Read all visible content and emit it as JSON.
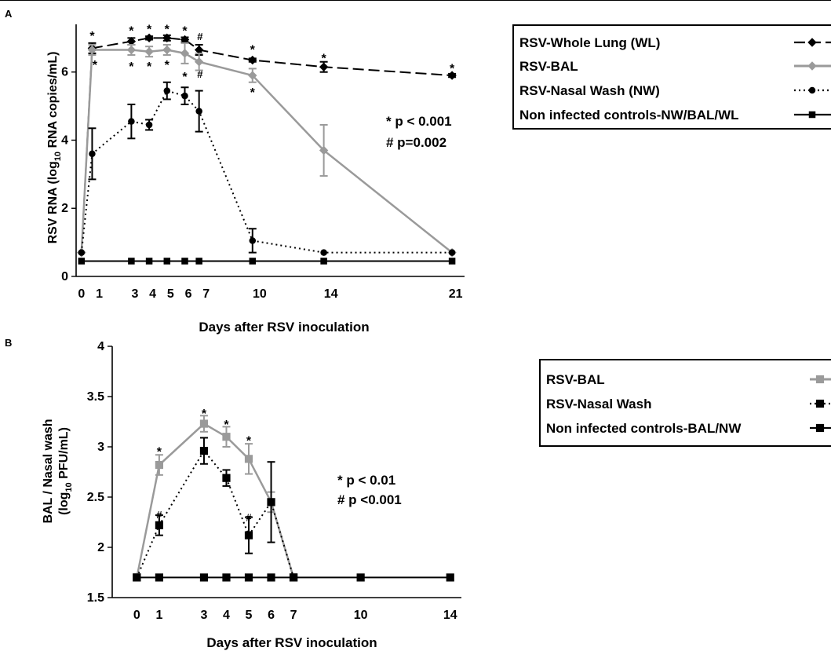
{
  "chart_data": [
    {
      "panel_label": "A",
      "type": "line",
      "xlabel": "Days after RSV inoculation",
      "ylabel_main": "RSV RNA (log",
      "ylabel_sub": "10",
      "ylabel_end": " RNA copies/mL)",
      "x_ticks": [
        "0",
        "1",
        "3",
        "4",
        "5",
        "6",
        "7",
        "10",
        "14",
        "21"
      ],
      "x_tick_values": [
        0,
        1,
        3,
        4,
        5,
        6,
        7,
        10,
        14,
        21
      ],
      "y_ticks": [
        "0",
        "2",
        "4",
        "6"
      ],
      "y_tick_values": [
        0,
        2,
        4,
        6
      ],
      "xlim": [
        -0.3,
        21.5
      ],
      "ylim": [
        0,
        7.4
      ],
      "grid": false,
      "legend_position": "top-right",
      "series": [
        {
          "name": "RSV-Whole Lung (WL)",
          "color": "#000000",
          "dash": "dash",
          "marker": "diamond",
          "x": [
            0,
            0.6,
            2.8,
            3.8,
            4.8,
            5.8,
            6.6,
            9.6,
            13.6,
            20.8
          ],
          "y": [
            0.7,
            6.7,
            6.9,
            7.0,
            7.0,
            6.95,
            6.65,
            6.35,
            6.15,
            5.9
          ],
          "err": [
            0,
            0.15,
            0.1,
            0.05,
            0.08,
            0.07,
            0.15,
            0.05,
            0.15,
            0.05
          ]
        },
        {
          "name": "RSV-BAL",
          "color": "#9a9a9a",
          "dash": "solid",
          "marker": "diamond",
          "x": [
            0,
            0.6,
            2.8,
            3.8,
            4.8,
            5.8,
            6.6,
            9.6,
            13.6,
            20.8
          ],
          "y": [
            0.7,
            6.65,
            6.65,
            6.6,
            6.65,
            6.55,
            6.3,
            5.9,
            3.7,
            0.7
          ],
          "err": [
            0,
            0.15,
            0.15,
            0.15,
            0.15,
            0.3,
            0.25,
            0.2,
            0.75,
            0
          ]
        },
        {
          "name": "RSV-Nasal Wash (NW)",
          "color": "#000000",
          "dash": "dot",
          "marker": "circle",
          "x": [
            0,
            0.6,
            2.8,
            3.8,
            4.8,
            5.8,
            6.6,
            9.6,
            13.6,
            20.8
          ],
          "y": [
            0.7,
            3.6,
            4.55,
            4.45,
            5.45,
            5.3,
            4.85,
            1.05,
            0.7,
            0.7
          ],
          "err": [
            0,
            0.75,
            0.5,
            0.15,
            0.25,
            0.25,
            0.6,
            0.35,
            0,
            0
          ]
        },
        {
          "name": "Non infected controls-NW/BAL/WL",
          "color": "#000000",
          "dash": "solid",
          "marker": "square",
          "x": [
            0,
            2.8,
            3.8,
            4.8,
            5.8,
            6.6,
            9.6,
            13.6,
            20.8
          ],
          "y": [
            0.45,
            0.45,
            0.45,
            0.45,
            0.45,
            0.45,
            0.45,
            0.45,
            0.45
          ],
          "err": [
            0,
            0,
            0,
            0,
            0,
            0,
            0,
            0,
            0
          ]
        }
      ],
      "annotations": [
        {
          "text": "*",
          "x": 0.6,
          "y": 7.05
        },
        {
          "text": "*",
          "x": 0.75,
          "y": 6.2
        },
        {
          "text": "*",
          "x": 2.8,
          "y": 7.2
        },
        {
          "text": "*",
          "x": 2.8,
          "y": 6.15
        },
        {
          "text": "*",
          "x": 3.8,
          "y": 7.25
        },
        {
          "text": "*",
          "x": 3.8,
          "y": 6.15
        },
        {
          "text": "*",
          "x": 4.8,
          "y": 7.25
        },
        {
          "text": "*",
          "x": 4.8,
          "y": 6.2
        },
        {
          "text": "*",
          "x": 5.8,
          "y": 7.2
        },
        {
          "text": "*",
          "x": 5.8,
          "y": 5.85
        },
        {
          "text": "#",
          "x": 6.65,
          "y": 7.05
        },
        {
          "text": "*",
          "x": 6.65,
          "y": 6.55
        },
        {
          "text": "#",
          "x": 6.65,
          "y": 5.95
        },
        {
          "text": "*",
          "x": 9.6,
          "y": 6.65
        },
        {
          "text": "*",
          "x": 9.6,
          "y": 5.4
        },
        {
          "text": "*",
          "x": 13.6,
          "y": 6.4
        },
        {
          "text": "*",
          "x": 20.8,
          "y": 6.1
        }
      ],
      "stats_lines": [
        {
          "text": "* p < 0.001"
        },
        {
          "text": "# p=0.002"
        }
      ]
    },
    {
      "panel_label": "B",
      "type": "line",
      "xlabel": "Days after RSV inoculation",
      "ylabel_line1": "BAL / Nasal wash",
      "ylabel_main": "(log",
      "ylabel_sub": "10",
      "ylabel_end": " PFU/mL)",
      "x_ticks": [
        "0",
        "1",
        "3",
        "4",
        "5",
        "6",
        "7",
        "10",
        "14"
      ],
      "x_tick_values": [
        0,
        1,
        3,
        4,
        5,
        6,
        7,
        10,
        14
      ],
      "y_ticks": [
        "1.5",
        "2",
        "2.5",
        "3",
        "3.5",
        "4"
      ],
      "y_tick_values": [
        1.5,
        2,
        2.5,
        3,
        3.5,
        4
      ],
      "xlim": [
        -1.1,
        14.5
      ],
      "ylim": [
        1.5,
        4
      ],
      "grid": false,
      "legend_position": "top-right",
      "series": [
        {
          "name": "RSV-BAL",
          "color": "#9a9a9a",
          "dash": "solid",
          "marker": "square",
          "x": [
            0,
            1,
            3,
            4,
            5,
            6,
            7
          ],
          "y": [
            1.7,
            2.82,
            3.23,
            3.1,
            2.88,
            2.45,
            1.7
          ],
          "err": [
            0,
            0.1,
            0.08,
            0.1,
            0.15,
            0.1,
            0
          ]
        },
        {
          "name": "RSV-Nasal Wash",
          "color": "#000000",
          "dash": "dot",
          "marker": "square",
          "x": [
            0,
            1,
            3,
            4,
            5,
            6,
            7
          ],
          "y": [
            1.7,
            2.22,
            2.96,
            2.69,
            2.12,
            2.45,
            1.7
          ],
          "err": [
            0,
            0.1,
            0.13,
            0.08,
            0.18,
            0.4,
            0
          ]
        },
        {
          "name": "Non infected controls-BAL/NW",
          "color": "#000000",
          "dash": "solid",
          "marker": "square",
          "x": [
            0,
            1,
            3,
            4,
            5,
            6,
            7,
            10,
            14
          ],
          "y": [
            1.7,
            1.7,
            1.7,
            1.7,
            1.7,
            1.7,
            1.7,
            1.7,
            1.7
          ],
          "err": [
            0,
            0,
            0,
            0,
            0,
            0,
            0,
            0,
            0
          ]
        }
      ],
      "annotations": [
        {
          "text": "*",
          "x": 1,
          "y": 2.95
        },
        {
          "text": "#",
          "x": 1,
          "y": 2.33
        },
        {
          "text": "*",
          "x": 3,
          "y": 3.33
        },
        {
          "text": "*",
          "x": 4,
          "y": 3.22
        },
        {
          "text": "*",
          "x": 5,
          "y": 3.06
        },
        {
          "text": "#",
          "x": 5,
          "y": 2.3
        }
      ],
      "stats_lines": [
        {
          "text": "* p < 0.01"
        },
        {
          "text": "# p <0.001"
        }
      ]
    }
  ]
}
